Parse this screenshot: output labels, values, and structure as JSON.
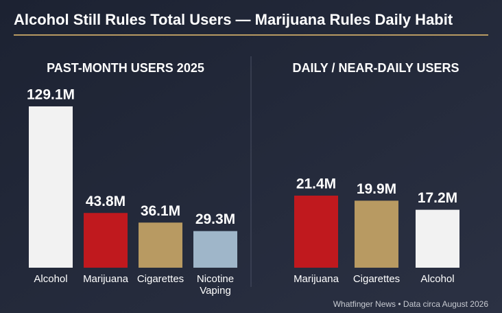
{
  "title": "Alcohol Still Rules Total Users — Marijuana Rules Daily Habit",
  "source": "Whatfinger News • Data circa August 2026",
  "chart_data": [
    {
      "type": "bar",
      "title": "PAST-MONTH USERS 2025",
      "categories": [
        "Alcohol",
        "Marijuana",
        "Cigarettes",
        "Nicotine Vaping"
      ],
      "values": [
        129.1,
        43.8,
        36.1,
        29.3
      ],
      "value_labels": [
        "129.1M",
        "43.8M",
        "36.1M",
        "29.3M"
      ],
      "colors": [
        "#f2f2f2",
        "#c0191e",
        "#b89a62",
        "#9fb6c9"
      ]
    },
    {
      "type": "bar",
      "title": "DAILY / NEAR-DAILY USERS",
      "categories": [
        "Marijuana",
        "Cigarettes",
        "Alcohol"
      ],
      "values": [
        21.4,
        19.9,
        17.2
      ],
      "value_labels": [
        "21.4M",
        "19.9M",
        "17.2M"
      ],
      "colors": [
        "#c0191e",
        "#b89a62",
        "#f2f2f2"
      ]
    }
  ]
}
